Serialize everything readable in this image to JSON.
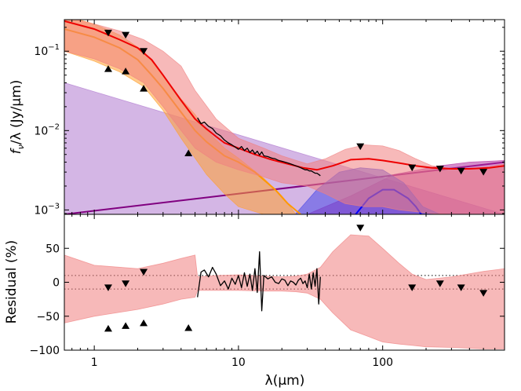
{
  "chart_data": [
    {
      "panel": "top",
      "type": "line",
      "xscale": "log",
      "yscale": "log",
      "xlim": [
        0.62,
        700
      ],
      "ylim": [
        0.00088,
        0.25
      ],
      "ylabel_parts": {
        "f": "f",
        "sub": "ν",
        "rest": "/λ (Jy/μm)"
      },
      "x_ticks": [
        1,
        10,
        100
      ],
      "x_tick_labels": [
        "1",
        "10",
        "100"
      ],
      "y_ticks": [
        0.001,
        0.01,
        0.1
      ],
      "y_tick_labels": [
        {
          "base": "10",
          "exp": "−3"
        },
        {
          "base": "10",
          "exp": "−2"
        },
        {
          "base": "10",
          "exp": "−1"
        }
      ],
      "series": [
        {
          "name": "power-law component",
          "kind": "band",
          "color": "#b07ad0",
          "x": [
            0.62,
            700
          ],
          "upper": [
            0.04,
            0.00088
          ],
          "lower": [
            0.00088,
            0.00088
          ]
        },
        {
          "name": "power-law line",
          "kind": "line",
          "color": "#800080",
          "x": [
            0.62,
            700
          ],
          "y": [
            0.00088,
            0.004
          ]
        },
        {
          "name": "cool dust band",
          "kind": "band",
          "color": "#b22fa0",
          "x": [
            30,
            60,
            120,
            250,
            400,
            700
          ],
          "upper": [
            0.00088,
            0.0015,
            0.0028,
            0.0036,
            0.004,
            0.0042
          ],
          "lower": [
            0.00088,
            0.00088,
            0.00088,
            0.00088,
            0.00088,
            0.00088
          ]
        },
        {
          "name": "warm dust band",
          "kind": "band",
          "color": "#4a4ae8",
          "x": [
            25,
            35,
            50,
            70,
            100,
            140,
            190,
            250
          ],
          "upper": [
            0.0009,
            0.0018,
            0.003,
            0.0034,
            0.0032,
            0.0022,
            0.0011,
            0.00088
          ],
          "lower": [
            0.00088,
            0.00088,
            0.00088,
            0.00088,
            0.00088,
            0.00088,
            0.00088,
            0.00088
          ]
        },
        {
          "name": "warm dust line",
          "kind": "line",
          "color": "#0000ff",
          "x": [
            65,
            80,
            100,
            120,
            150,
            170,
            185
          ],
          "y": [
            0.00088,
            0.0014,
            0.0018,
            0.0018,
            0.0014,
            0.0011,
            0.00088
          ]
        },
        {
          "name": "stellar component band",
          "kind": "band",
          "color": "#ffa030",
          "x": [
            0.62,
            1.0,
            1.5,
            2.2,
            3.0,
            4.0,
            5.0,
            6.0,
            8.0,
            10.0,
            15.0,
            20.0,
            25.0
          ],
          "upper": [
            0.28,
            0.22,
            0.16,
            0.1,
            0.05,
            0.025,
            0.016,
            0.01,
            0.006,
            0.0045,
            0.0025,
            0.0015,
            0.00088
          ],
          "lower": [
            0.1,
            0.075,
            0.055,
            0.036,
            0.018,
            0.008,
            0.0045,
            0.0028,
            0.0016,
            0.0011,
            0.00088,
            0.00088,
            0.00088
          ]
        },
        {
          "name": "stellar component line",
          "kind": "line",
          "color": "#ff9900",
          "x": [
            0.62,
            1.0,
            1.5,
            2.0,
            2.5,
            3.0,
            4.0,
            5.0,
            6.0,
            8.0,
            10.0,
            13.0,
            18.0,
            22.0,
            27.0
          ],
          "y": [
            0.19,
            0.15,
            0.11,
            0.078,
            0.05,
            0.034,
            0.017,
            0.01,
            0.0072,
            0.0048,
            0.004,
            0.003,
            0.0018,
            0.0012,
            0.00088
          ]
        },
        {
          "name": "total model band",
          "kind": "band",
          "color": "#f08080",
          "x": [
            0.62,
            1.0,
            1.5,
            2.2,
            3.0,
            4.0,
            5.0,
            7.0,
            10.0,
            15.0,
            20.0,
            30.0,
            40.0,
            55.0,
            75.0,
            100.0,
            130.0,
            170.0,
            220.0,
            300.0,
            400.0,
            550.0,
            700.0
          ],
          "upper": [
            0.27,
            0.22,
            0.18,
            0.14,
            0.1,
            0.065,
            0.032,
            0.014,
            0.008,
            0.006,
            0.0048,
            0.0038,
            0.0044,
            0.0058,
            0.0066,
            0.0064,
            0.0056,
            0.0044,
            0.0036,
            0.0033,
            0.0033,
            0.0035,
            0.0038
          ],
          "lower": [
            0.1,
            0.08,
            0.06,
            0.04,
            0.02,
            0.01,
            0.006,
            0.004,
            0.0032,
            0.0026,
            0.0022,
            0.002,
            0.0016,
            0.0012,
            0.0011,
            0.0011,
            0.001,
            0.00095,
            0.0009,
            0.00088,
            0.00088,
            0.00088,
            0.00088
          ]
        },
        {
          "name": "total model",
          "kind": "line",
          "color": "#ee0000",
          "x": [
            0.62,
            1.0,
            1.5,
            2.0,
            2.5,
            3.0,
            4.0,
            5.0,
            6.0,
            7.0,
            8.0,
            10.0,
            13.0,
            17.0,
            22.0,
            28.0,
            35.0,
            45.0,
            60.0,
            80.0,
            100.0,
            130.0,
            170.0,
            220.0,
            300.0,
            400.0,
            550.0,
            700.0
          ],
          "y": [
            0.24,
            0.19,
            0.14,
            0.11,
            0.078,
            0.05,
            0.024,
            0.014,
            0.0105,
            0.0084,
            0.007,
            0.006,
            0.005,
            0.0043,
            0.0038,
            0.0034,
            0.0032,
            0.0036,
            0.0043,
            0.0044,
            0.0042,
            0.0039,
            0.0036,
            0.0034,
            0.0033,
            0.0033,
            0.0034,
            0.0036
          ]
        },
        {
          "name": "observed spectrum",
          "kind": "spectrum",
          "color": "#000000",
          "x": [
            5.2,
            5.5,
            5.8,
            6.2,
            6.6,
            7.0,
            7.5,
            8.0,
            8.5,
            9.0,
            9.5,
            10.0,
            10.5,
            11.0,
            11.5,
            12.0,
            12.5,
            13.0,
            13.5,
            14.0,
            14.5,
            15.0,
            16.0,
            17.0,
            18.0,
            19.0,
            20.0,
            21.0,
            22.0,
            23.0,
            24.0,
            25.0,
            26.0,
            27.0,
            28.0,
            29.0,
            30.0,
            31.0,
            32.0,
            33.0,
            34.0,
            35.0,
            36.0,
            37.0
          ],
          "y": [
            0.0145,
            0.0122,
            0.0128,
            0.0113,
            0.0106,
            0.0093,
            0.0086,
            0.0076,
            0.007,
            0.0066,
            0.0062,
            0.0058,
            0.0063,
            0.0056,
            0.006,
            0.0053,
            0.0057,
            0.0051,
            0.0055,
            0.0049,
            0.0054,
            0.0048,
            0.0047,
            0.0045,
            0.0044,
            0.0042,
            0.0041,
            0.004,
            0.0039,
            0.0038,
            0.0037,
            0.0036,
            0.0035,
            0.0034,
            0.0033,
            0.0032,
            0.0032,
            0.0031,
            0.0031,
            0.003,
            0.0029,
            0.0029,
            0.0028,
            0.0027
          ]
        },
        {
          "name": "upper limits",
          "kind": "marker_down",
          "color": "#000000",
          "x": [
            1.25,
            1.65,
            2.2,
            70,
            160,
            250,
            350,
            500
          ],
          "y": [
            0.17,
            0.16,
            0.1,
            0.0063,
            0.0034,
            0.0033,
            0.0031,
            0.003
          ]
        },
        {
          "name": "photometry",
          "kind": "marker_up",
          "color": "#000000",
          "x": [
            1.25,
            1.65,
            2.2,
            4.5
          ],
          "y": [
            0.06,
            0.056,
            0.034,
            0.0052
          ]
        }
      ]
    },
    {
      "panel": "bottom",
      "type": "line",
      "xscale": "log",
      "yscale": "linear",
      "xlim": [
        0.62,
        700
      ],
      "ylim": [
        -100,
        100
      ],
      "xlabel": "λ(μm)",
      "ylabel": "Residual (%)",
      "x_ticks": [
        1,
        10,
        100
      ],
      "x_tick_labels": [
        "1",
        "10",
        "100"
      ],
      "y_ticks": [
        -100,
        -50,
        0,
        50
      ],
      "y_tick_labels": [
        "−100",
        "−50",
        "0",
        "50"
      ],
      "reference_lines": [
        10,
        -10
      ],
      "series": [
        {
          "name": "residual uncertainty band",
          "kind": "band",
          "color": "#f08080",
          "x": [
            0.62,
            1.0,
            2.0,
            3.0,
            4.0,
            5.0,
            5.2,
            7.0,
            10.0,
            15.0,
            20.0,
            25.0,
            30.0,
            37.0,
            45.0,
            60.0,
            80.0,
            100.0,
            130.0,
            160.0,
            200.0,
            300.0,
            500.0,
            700.0
          ],
          "upper": [
            40,
            25,
            20,
            28,
            35,
            40,
            8,
            10,
            11,
            9,
            8,
            9,
            12,
            22,
            45,
            70,
            68,
            50,
            28,
            12,
            4,
            8,
            16,
            20
          ],
          "lower": [
            -60,
            -50,
            -40,
            -32,
            -25,
            -22,
            -12,
            -12,
            -12,
            -13,
            -13,
            -14,
            -16,
            -25,
            -45,
            -70,
            -80,
            -88,
            -91,
            -93,
            -95,
            -96,
            -98,
            -98
          ]
        },
        {
          "name": "residual spectrum",
          "kind": "spectrum",
          "color": "#000000",
          "x": [
            5.2,
            5.5,
            5.8,
            6.2,
            6.6,
            7.0,
            7.5,
            8.0,
            8.5,
            9.0,
            9.5,
            10.0,
            10.5,
            11.0,
            11.5,
            12.0,
            12.5,
            13.0,
            13.5,
            14.0,
            14.5,
            15.0,
            16.0,
            17.0,
            18.0,
            19.0,
            20.0,
            21.0,
            22.0,
            23.0,
            24.0,
            25.0,
            26.0,
            27.0,
            28.0,
            29.0,
            30.0,
            31.0,
            32.0,
            33.0,
            34.0,
            35.0,
            36.0,
            37.0
          ],
          "y": [
            -22,
            15,
            18,
            8,
            22,
            12,
            -5,
            2,
            -10,
            6,
            -3,
            10,
            -8,
            14,
            -6,
            12,
            -12,
            20,
            -15,
            45,
            -42,
            10,
            5,
            8,
            0,
            -2,
            5,
            3,
            -5,
            2,
            0,
            -4,
            3,
            6,
            -2,
            2,
            -8,
            12,
            -10,
            14,
            -6,
            20,
            -32,
            8
          ]
        },
        {
          "name": "residual upper limits",
          "kind": "marker_down",
          "color": "#000000",
          "x": [
            1.25,
            1.65,
            2.2,
            70,
            160,
            250,
            350,
            500
          ],
          "y": [
            -8,
            -2,
            15,
            80,
            -8,
            -2,
            -8,
            -16
          ]
        },
        {
          "name": "residual photometry",
          "kind": "marker_up",
          "color": "#000000",
          "x": [
            1.25,
            1.65,
            2.2,
            4.5
          ],
          "y": [
            -68,
            -64,
            -60,
            -67
          ]
        }
      ]
    }
  ]
}
